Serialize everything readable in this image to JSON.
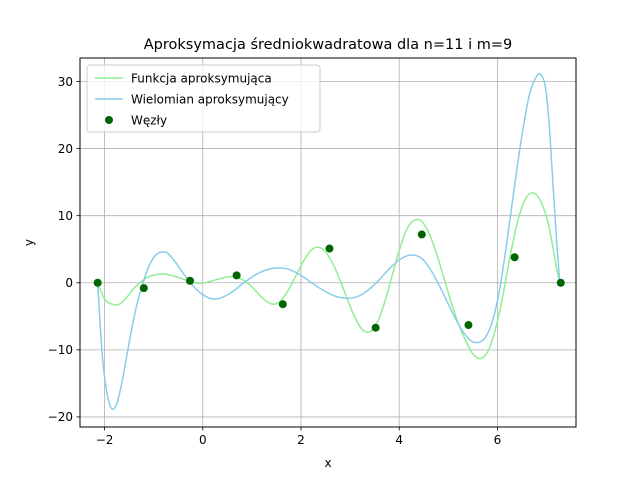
{
  "chart_data": {
    "type": "line",
    "title": "Aproksymacja średniokwadratowa dla n=11 i m=9",
    "xlabel": "x",
    "ylabel": "y",
    "xlim": [
      -2.5,
      7.6
    ],
    "ylim": [
      -21.5,
      33.5
    ],
    "xticks": [
      -2,
      0,
      2,
      4,
      6
    ],
    "yticks": [
      -20,
      -10,
      0,
      10,
      20,
      30
    ],
    "xtick_labels": [
      "−2",
      "0",
      "2",
      "4",
      "6"
    ],
    "ytick_labels": [
      "−20",
      "−10",
      "0",
      "10",
      "20",
      "30"
    ],
    "grid": true,
    "legend_position": "upper-left",
    "series": [
      {
        "name": "Funkcja aproksymująca",
        "kind": "line",
        "color": "#90ee90",
        "x": [
          -2.14,
          -2.0,
          -1.85,
          -1.7,
          -1.55,
          -1.4,
          -1.25,
          -1.1,
          -0.95,
          -0.8,
          -0.65,
          -0.5,
          -0.35,
          -0.2,
          -0.05,
          0.1,
          0.25,
          0.4,
          0.55,
          0.7,
          0.85,
          1.0,
          1.15,
          1.3,
          1.45,
          1.6,
          1.75,
          1.9,
          2.05,
          2.2,
          2.35,
          2.5,
          2.65,
          2.8,
          2.95,
          3.1,
          3.25,
          3.4,
          3.55,
          3.7,
          3.85,
          4.0,
          4.15,
          4.3,
          4.45,
          4.6,
          4.75,
          4.9,
          5.05,
          5.2,
          5.35,
          5.5,
          5.65,
          5.8,
          5.95,
          6.1,
          6.25,
          6.4,
          6.55,
          6.7,
          6.85,
          7.0,
          7.1,
          7.2,
          7.27
        ],
        "y": [
          0,
          -2.4,
          -3.2,
          -3.2,
          -2.2,
          -0.8,
          0.2,
          0.9,
          1.2,
          1.3,
          1.1,
          0.8,
          0.4,
          0.1,
          -0.1,
          0.1,
          0.4,
          0.7,
          0.9,
          0.8,
          0.3,
          -0.6,
          -1.8,
          -2.8,
          -3.2,
          -2.6,
          -1.0,
          1.1,
          3.2,
          4.8,
          5.3,
          4.6,
          2.8,
          0.3,
          -2.6,
          -5.2,
          -7.0,
          -7.3,
          -6.0,
          -3.0,
          0.9,
          4.8,
          7.9,
          9.3,
          9.2,
          7.5,
          4.6,
          1.0,
          -2.7,
          -6.0,
          -8.6,
          -10.6,
          -11.3,
          -10.3,
          -7.2,
          -2.3,
          3.6,
          8.8,
          12.2,
          13.4,
          12.6,
          9.8,
          6.5,
          2.3,
          0
        ]
      },
      {
        "name": "Wielomian aproksymujący",
        "kind": "line",
        "color": "#87ceeb",
        "x": [
          -2.14,
          -2.05,
          -1.95,
          -1.85,
          -1.75,
          -1.65,
          -1.55,
          -1.45,
          -1.35,
          -1.25,
          -1.1,
          -0.95,
          -0.8,
          -0.7,
          -0.55,
          -0.4,
          -0.25,
          -0.1,
          0.05,
          0.2,
          0.35,
          0.5,
          0.65,
          0.8,
          0.95,
          1.1,
          1.25,
          1.4,
          1.55,
          1.7,
          1.85,
          2.0,
          2.2,
          2.4,
          2.6,
          2.8,
          3.0,
          3.2,
          3.4,
          3.6,
          3.8,
          4.0,
          4.2,
          4.4,
          4.55,
          4.7,
          4.85,
          5.0,
          5.15,
          5.3,
          5.45,
          5.6,
          5.75,
          5.9,
          6.05,
          6.2,
          6.35,
          6.5,
          6.65,
          6.8,
          6.9,
          6.98,
          7.05,
          7.12,
          7.2,
          7.27
        ],
        "y": [
          0,
          -10.5,
          -16.5,
          -18.8,
          -18.0,
          -15.0,
          -11.0,
          -7.0,
          -3.5,
          -0.8,
          2.4,
          4.2,
          4.6,
          4.3,
          3.0,
          1.4,
          0,
          -1.2,
          -2.0,
          -2.4,
          -2.3,
          -1.8,
          -1.1,
          -0.2,
          0.6,
          1.3,
          1.8,
          2.1,
          2.2,
          2.1,
          1.7,
          1.1,
          0.1,
          -0.9,
          -1.7,
          -2.2,
          -2.3,
          -1.9,
          -0.9,
          0.5,
          2.1,
          3.4,
          4.1,
          3.9,
          2.9,
          1.2,
          -0.9,
          -3.2,
          -5.4,
          -7.3,
          -8.6,
          -8.9,
          -8.2,
          -5.7,
          -0.8,
          6.5,
          14.5,
          22.0,
          28.0,
          30.8,
          30.9,
          29.0,
          24.0,
          16.0,
          6.8,
          0
        ]
      },
      {
        "name": "Węzły",
        "kind": "scatter",
        "color": "#006400",
        "x": [
          -2.14,
          -1.2,
          -0.26,
          0.69,
          1.63,
          2.58,
          3.52,
          4.46,
          5.41,
          6.35,
          7.29
        ],
        "y": [
          0,
          -0.8,
          0.3,
          1.1,
          -3.2,
          5.1,
          -6.7,
          7.2,
          -6.3,
          3.8,
          0
        ]
      }
    ]
  }
}
